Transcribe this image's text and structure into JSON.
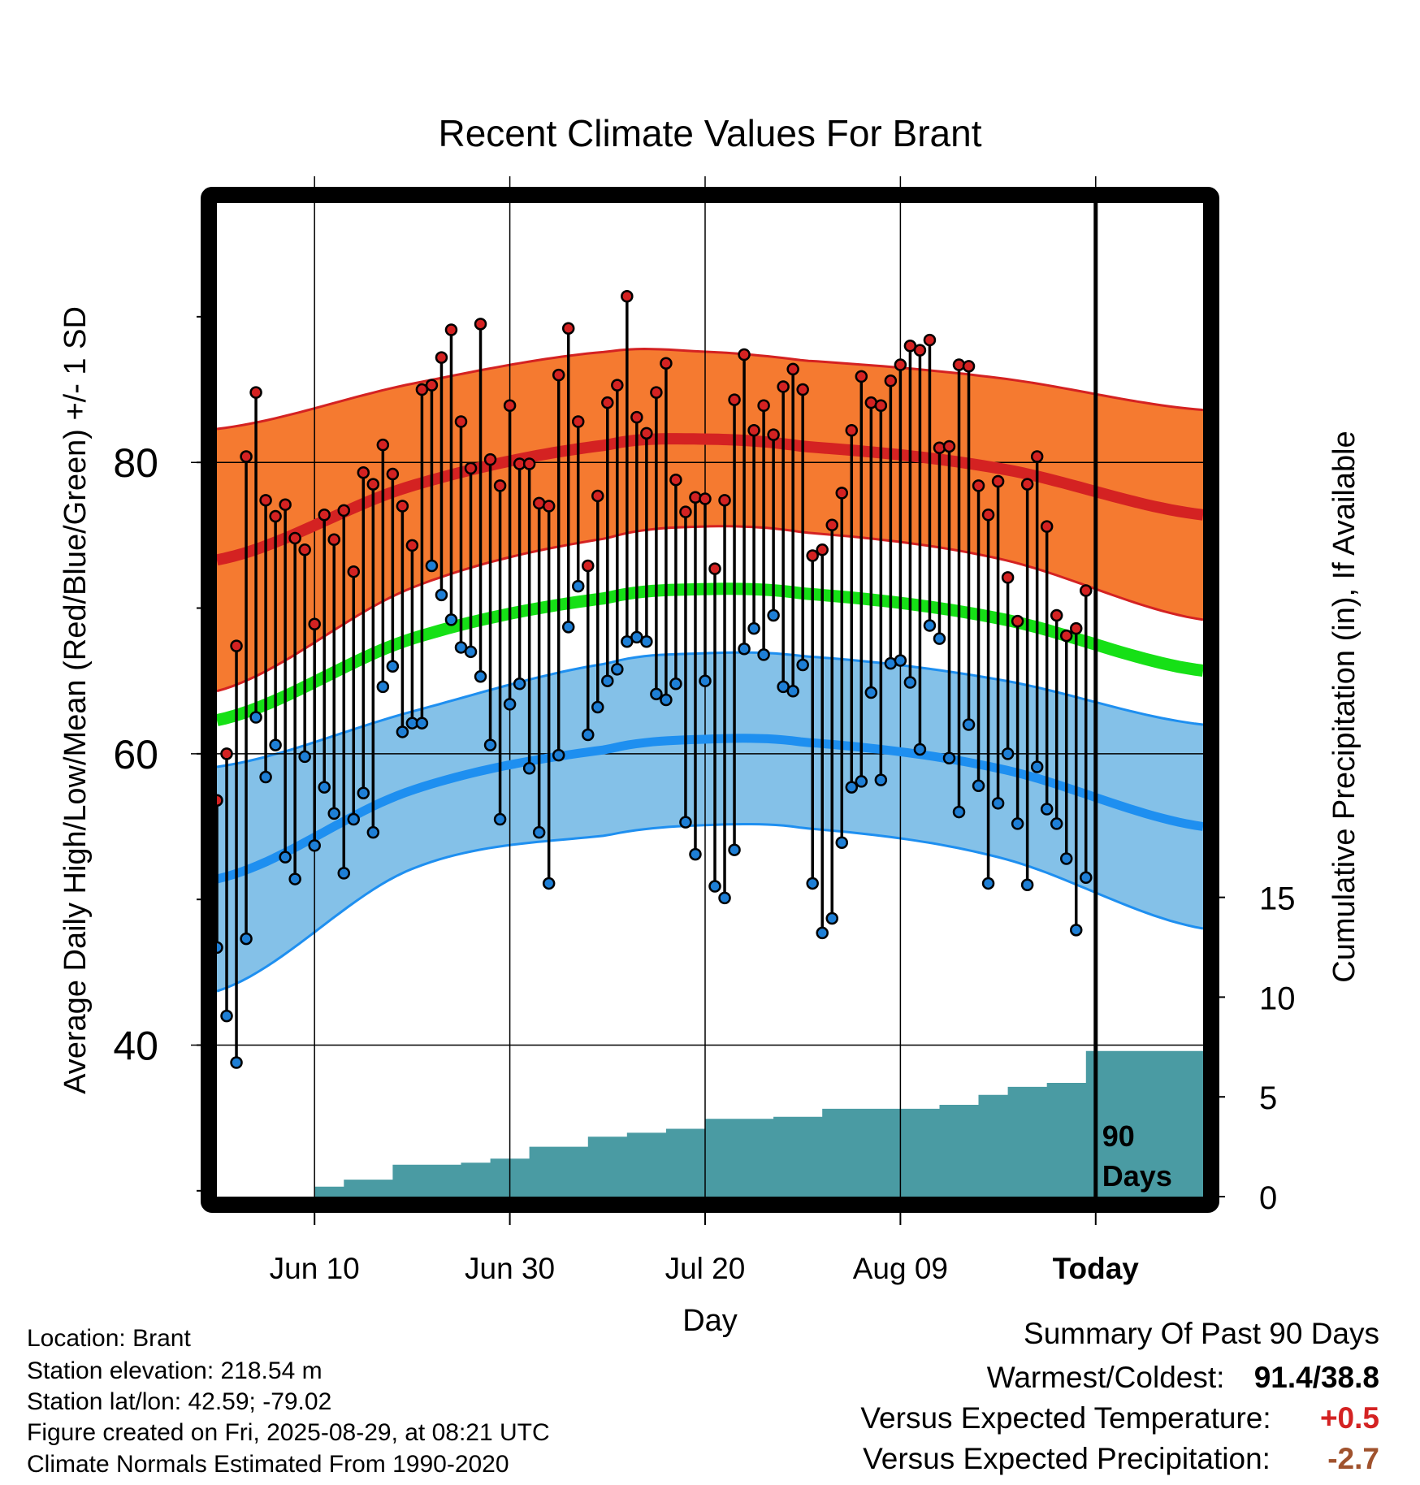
{
  "chart_data": {
    "type": "line",
    "title": "Recent Climate Values For Brant",
    "xlabel": "Day",
    "ylabel": "Average Daily High/Low/Mean (Red/Blue/Green) +/- 1 SD",
    "ylabel_right": "Cumulative Precipitation (in), If Available",
    "x_ticks": [
      "Jun 10",
      "Jun 30",
      "Jul 20",
      "Aug 09",
      "Today"
    ],
    "y_ticks": [
      40,
      60,
      80
    ],
    "y2_ticks": [
      0,
      5,
      10,
      15
    ],
    "today_marker": {
      "line1": "90",
      "line2": "Days"
    },
    "ylim": [
      29.6,
      97.8
    ],
    "y2lim": [
      0,
      49.8
    ],
    "grid": true,
    "x_domain": [
      "2025-05-31",
      "2025-09-09"
    ],
    "today": "2025-08-29",
    "normal_high": [
      {
        "date": "2025-05-31",
        "mean": 73.3,
        "sd": 9.0
      },
      {
        "date": "2025-06-20",
        "mean": 78.4,
        "sd": 7.0
      },
      {
        "date": "2025-07-10",
        "mean": 81.2,
        "sd": 6.4
      },
      {
        "date": "2025-07-20",
        "mean": 81.6,
        "sd": 6.0
      },
      {
        "date": "2025-07-30",
        "mean": 81.1,
        "sd": 5.9
      },
      {
        "date": "2025-08-19",
        "mean": 79.6,
        "sd": 6.2
      },
      {
        "date": "2025-09-09",
        "mean": 76.4,
        "sd": 7.2
      }
    ],
    "normal_low": [
      {
        "date": "2025-05-31",
        "mean": 51.4,
        "sd": 7.7
      },
      {
        "date": "2025-06-20",
        "mean": 57.5,
        "sd": 5.4
      },
      {
        "date": "2025-07-10",
        "mean": 60.3,
        "sd": 5.9
      },
      {
        "date": "2025-07-20",
        "mean": 61.0,
        "sd": 5.9
      },
      {
        "date": "2025-07-30",
        "mean": 60.8,
        "sd": 5.9
      },
      {
        "date": "2025-08-19",
        "mean": 59.0,
        "sd": 6.1
      },
      {
        "date": "2025-09-09",
        "mean": 55.0,
        "sd": 7.0
      }
    ],
    "normal_mean": [
      {
        "date": "2025-05-31",
        "value": 62.3
      },
      {
        "date": "2025-06-20",
        "value": 67.9
      },
      {
        "date": "2025-07-10",
        "value": 70.7
      },
      {
        "date": "2025-07-20",
        "value": 71.3
      },
      {
        "date": "2025-07-30",
        "value": 71.0
      },
      {
        "date": "2025-08-19",
        "value": 69.3
      },
      {
        "date": "2025-09-09",
        "value": 65.7
      }
    ],
    "series": [
      {
        "name": "Daily High",
        "color": "#d42222",
        "start_date": "2025-05-31",
        "values": [
          56.8,
          60.0,
          67.4,
          80.4,
          84.8,
          77.4,
          76.3,
          77.1,
          74.8,
          74.0,
          68.9,
          76.4,
          74.7,
          76.7,
          72.5,
          79.3,
          78.5,
          81.2,
          79.2,
          77.0,
          74.3,
          85.0,
          85.3,
          87.2,
          89.1,
          82.8,
          79.6,
          89.5,
          80.2,
          78.4,
          83.9,
          79.9,
          79.9,
          77.2,
          77.0,
          86.0,
          89.2,
          82.8,
          72.9,
          77.7,
          84.1,
          85.3,
          91.4,
          83.1,
          82.0,
          84.8,
          86.8,
          78.8,
          76.6,
          77.6,
          77.5,
          72.7,
          77.4,
          84.3,
          87.4,
          82.2,
          83.9,
          81.9,
          85.2,
          86.4,
          85.0,
          73.6,
          74.0,
          75.7,
          77.9,
          82.2,
          85.9,
          84.1,
          83.9,
          85.6,
          86.7,
          88.0,
          87.7,
          88.4,
          81.0,
          81.1,
          86.7,
          86.6,
          78.4,
          76.4,
          78.7,
          72.1,
          69.1,
          78.5,
          80.4,
          75.6,
          69.5,
          68.1,
          68.6,
          71.2
        ]
      },
      {
        "name": "Daily Low",
        "color": "#1e7fd6",
        "start_date": "2025-05-31",
        "values": [
          46.7,
          42.0,
          38.8,
          47.3,
          62.5,
          58.4,
          60.6,
          52.9,
          51.4,
          59.8,
          53.7,
          57.7,
          55.9,
          51.8,
          55.5,
          57.3,
          54.6,
          64.6,
          66.0,
          61.5,
          62.1,
          62.1,
          72.9,
          70.9,
          69.2,
          67.3,
          67.0,
          65.3,
          60.6,
          55.5,
          63.4,
          64.8,
          59.0,
          54.6,
          51.1,
          59.9,
          68.7,
          71.5,
          61.3,
          63.2,
          65.0,
          65.8,
          67.7,
          68.0,
          67.7,
          64.1,
          63.7,
          64.8,
          55.3,
          53.1,
          65.0,
          50.9,
          50.1,
          53.4,
          67.2,
          68.6,
          66.8,
          69.5,
          64.6,
          64.3,
          66.1,
          51.1,
          47.7,
          48.7,
          53.9,
          57.7,
          58.1,
          64.2,
          58.2,
          66.2,
          66.4,
          64.9,
          60.3,
          68.8,
          67.9,
          59.7,
          56.0,
          62.0,
          57.8,
          51.1,
          56.6,
          60.0,
          55.2,
          51.0,
          59.1,
          56.2,
          55.2,
          52.8,
          47.9,
          51.5
        ]
      },
      {
        "name": "Cumulative Precipitation",
        "color": "#4a9ba3",
        "steps": [
          {
            "date": "2025-06-09",
            "value": 0.0
          },
          {
            "date": "2025-06-10",
            "value": 0.5
          },
          {
            "date": "2025-06-13",
            "value": 0.85
          },
          {
            "date": "2025-06-18",
            "value": 1.6
          },
          {
            "date": "2025-06-25",
            "value": 1.7
          },
          {
            "date": "2025-06-28",
            "value": 1.9
          },
          {
            "date": "2025-07-02",
            "value": 2.5
          },
          {
            "date": "2025-07-08",
            "value": 3.0
          },
          {
            "date": "2025-07-12",
            "value": 3.2
          },
          {
            "date": "2025-07-16",
            "value": 3.4
          },
          {
            "date": "2025-07-20",
            "value": 3.9
          },
          {
            "date": "2025-07-27",
            "value": 4.0
          },
          {
            "date": "2025-08-01",
            "value": 4.4
          },
          {
            "date": "2025-08-13",
            "value": 4.6
          },
          {
            "date": "2025-08-17",
            "value": 5.1
          },
          {
            "date": "2025-08-20",
            "value": 5.5
          },
          {
            "date": "2025-08-24",
            "value": 5.7
          },
          {
            "date": "2025-08-28",
            "value": 7.3
          }
        ]
      }
    ]
  },
  "footer": {
    "location": "Location: Brant",
    "elevation": "Station elevation: 218.54 m",
    "latlon": "Station lat/lon: 42.59; -79.02",
    "created": "Figure created on Fri, 2025-08-29, at 08:21 UTC",
    "normals": "Climate Normals Estimated From 1990-2020"
  },
  "summary": {
    "heading": "Summary Of Past 90 Days",
    "warm_cold_label": "Warmest/Coldest:",
    "warm_cold_value": "91.4/38.8",
    "temp_label": "Versus Expected Temperature:",
    "temp_value": "+0.5",
    "temp_color": "#d42222",
    "precip_label": "Versus Expected Precipitation:",
    "precip_value": "-2.7",
    "precip_color": "#a0522d"
  }
}
